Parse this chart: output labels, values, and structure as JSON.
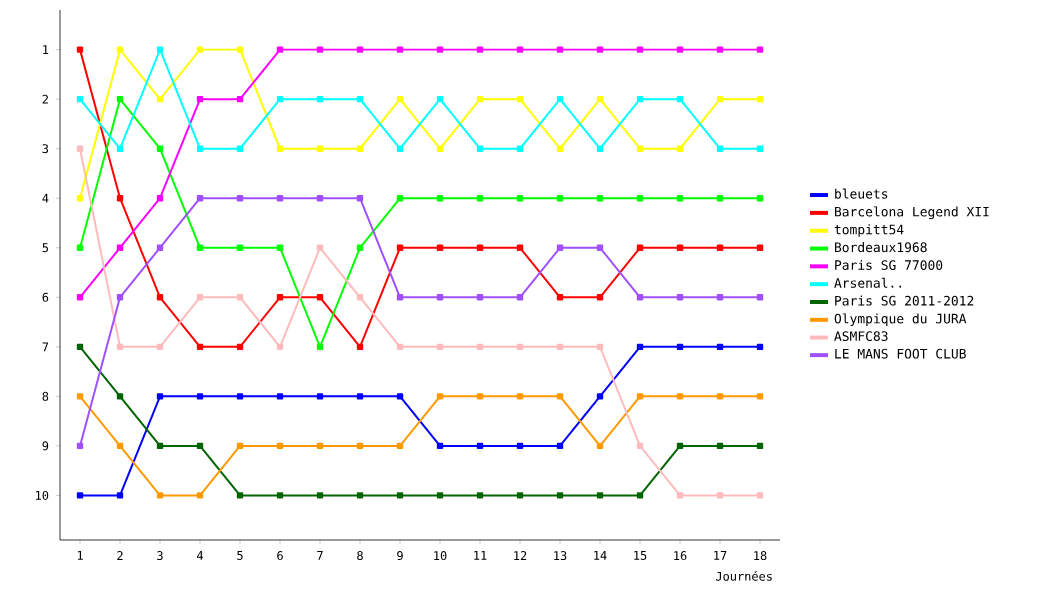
{
  "chart_data": {
    "type": "line",
    "xlabel": "Journées",
    "x": [
      1,
      2,
      3,
      4,
      5,
      6,
      7,
      8,
      9,
      10,
      11,
      12,
      13,
      14,
      15,
      16,
      17,
      18
    ],
    "xlim": [
      0.5,
      18.5
    ],
    "xticks": [
      1,
      2,
      3,
      4,
      5,
      6,
      7,
      8,
      9,
      10,
      11,
      12,
      13,
      14,
      15,
      16,
      17,
      18
    ],
    "ylim": [
      10.9,
      0.2
    ],
    "yticks": [
      1,
      2,
      3,
      4,
      5,
      6,
      7,
      8,
      9,
      10
    ],
    "legend": "right",
    "marker": "square",
    "line_style": "solid",
    "grid": false,
    "series": [
      {
        "name": "bleuets",
        "color": "#0000ff",
        "values": [
          10,
          10,
          8,
          8,
          8,
          8,
          8,
          8,
          8,
          9,
          9,
          9,
          9,
          8,
          7,
          7,
          7,
          7
        ]
      },
      {
        "name": "Barcelona Legend XII",
        "color": "#ff0000",
        "values": [
          1,
          4,
          6,
          7,
          7,
          6,
          6,
          7,
          5,
          5,
          5,
          5,
          6,
          6,
          5,
          5,
          5,
          5
        ]
      },
      {
        "name": "tompitt54",
        "color": "#ffff00",
        "values": [
          4,
          1,
          2,
          1,
          1,
          3,
          3,
          3,
          2,
          3,
          2,
          2,
          3,
          2,
          3,
          3,
          2,
          2
        ]
      },
      {
        "name": "Bordeaux1968",
        "color": "#00ff00",
        "values": [
          5,
          2,
          3,
          5,
          5,
          5,
          7,
          5,
          4,
          4,
          4,
          4,
          4,
          4,
          4,
          4,
          4,
          4
        ]
      },
      {
        "name": "Paris SG 77000",
        "color": "#ff00ff",
        "values": [
          6,
          5,
          4,
          2,
          2,
          1,
          1,
          1,
          1,
          1,
          1,
          1,
          1,
          1,
          1,
          1,
          1,
          1
        ]
      },
      {
        "name": "Arsenal..",
        "color": "#00ffff",
        "values": [
          2,
          3,
          1,
          3,
          3,
          2,
          2,
          2,
          3,
          2,
          3,
          3,
          2,
          3,
          2,
          2,
          3,
          3
        ]
      },
      {
        "name": "Paris SG 2011-2012",
        "color": "#006400",
        "values": [
          7,
          8,
          9,
          9,
          10,
          10,
          10,
          10,
          10,
          10,
          10,
          10,
          10,
          10,
          10,
          9,
          9,
          9
        ]
      },
      {
        "name": "Olympique du JURA",
        "color": "#ff9900",
        "values": [
          8,
          9,
          10,
          10,
          9,
          9,
          9,
          9,
          9,
          8,
          8,
          8,
          8,
          9,
          8,
          8,
          8,
          8
        ]
      },
      {
        "name": "ASMFC83",
        "color": "#ffbbbb",
        "values": [
          3,
          7,
          7,
          6,
          6,
          7,
          5,
          6,
          7,
          7,
          7,
          7,
          7,
          7,
          9,
          10,
          10,
          10
        ]
      },
      {
        "name": "LE MANS FOOT CLUB",
        "color": "#a050ff",
        "values": [
          9,
          6,
          5,
          4,
          4,
          4,
          4,
          4,
          6,
          6,
          6,
          6,
          5,
          5,
          6,
          6,
          6,
          6
        ]
      }
    ]
  }
}
